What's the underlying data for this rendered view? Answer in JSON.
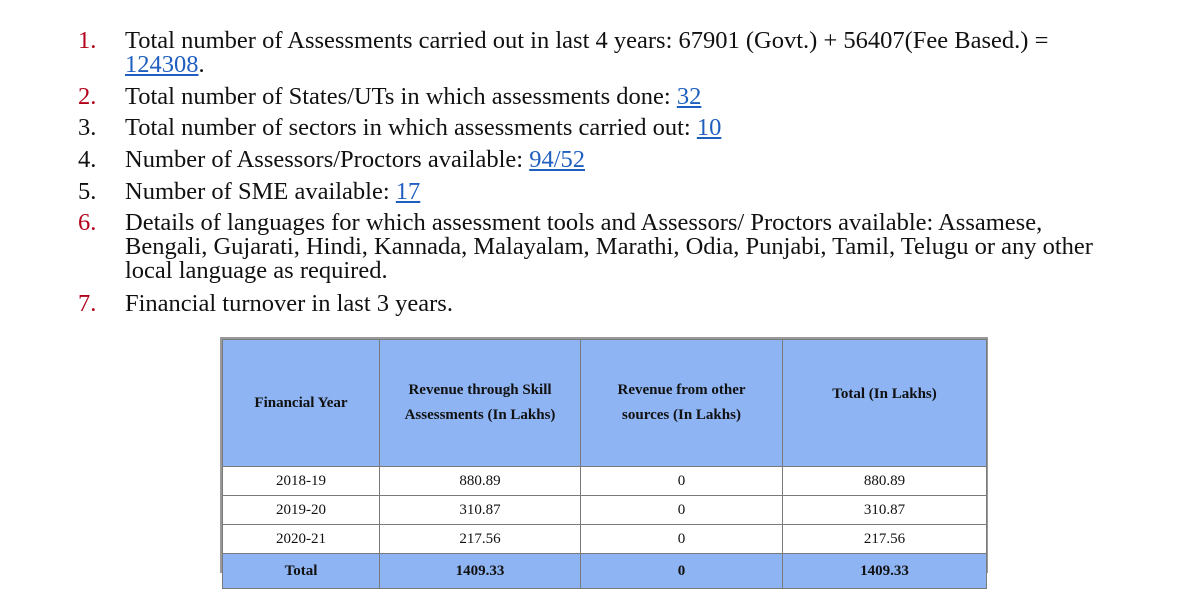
{
  "list": {
    "items": [
      {
        "num": "1.",
        "lines": [
          "Total number of Assessments carried out in last 4 years: 67901 (Govt.) + 56407(Fee Based.) ="
        ],
        "link": "124308",
        "suffix": "."
      },
      {
        "num": "2.",
        "text": "Total number of States/UTs in which assessments done: ",
        "link": "32"
      },
      {
        "num": "3.",
        "text": "Total number of sectors in which assessments carried out: ",
        "link": "10"
      },
      {
        "num": "4.",
        "text": "Number of Assessors/Proctors available: ",
        "link": "94/52"
      },
      {
        "num": "5.",
        "text": "Number of SME available: ",
        "link": "17"
      },
      {
        "num": "6.",
        "lines": [
          "Details of languages for which assessment tools and Assessors/ Proctors available: Assamese,",
          "Bengali, Gujarati, Hindi, Kannada, Malayalam, Marathi, Odia, Punjabi, Tamil, Telugu or any other",
          "local language as required."
        ]
      },
      {
        "num": "7.",
        "text": "Financial turnover in last 3 years."
      }
    ]
  },
  "table": {
    "headers": [
      [
        "Financial Year"
      ],
      [
        "Revenue through Skill",
        "Assessments  (In Lakhs)"
      ],
      [
        "Revenue from other",
        "sources  (In Lakhs)"
      ],
      [
        "Total  (In Lakhs)"
      ]
    ],
    "rows": [
      [
        "2018-19",
        "880.89",
        "0",
        "880.89"
      ],
      [
        "2019-20",
        "310.87",
        "0",
        "310.87"
      ],
      [
        "2020-21",
        "217.56",
        "0",
        "217.56"
      ]
    ],
    "total": [
      "Total",
      "1409.33",
      "0",
      "1409.33"
    ]
  },
  "colors": {
    "link": "#1f5fbf",
    "list_number_red": "#b3001b",
    "table_header_bg": "#8eb4f3"
  }
}
